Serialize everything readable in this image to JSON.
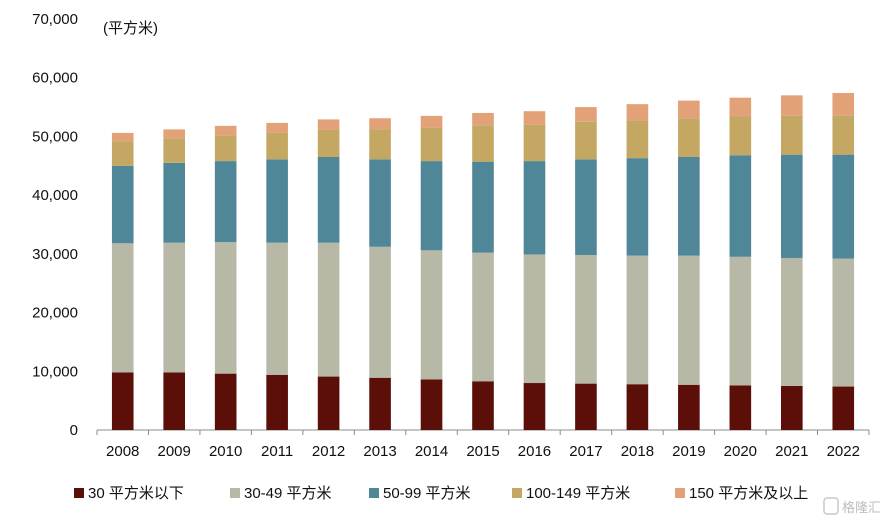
{
  "chart_data": {
    "type": "bar",
    "stacked": true,
    "unit_label": "(平方米)",
    "categories": [
      "2008",
      "2009",
      "2010",
      "2011",
      "2012",
      "2013",
      "2014",
      "2015",
      "2016",
      "2017",
      "2018",
      "2019",
      "2020",
      "2021",
      "2022"
    ],
    "ylim": [
      0,
      70000
    ],
    "yticks": [
      0,
      10000,
      20000,
      30000,
      40000,
      50000,
      60000,
      70000
    ],
    "ytick_labels": [
      "0",
      "10,000",
      "20,000",
      "30,000",
      "40,000",
      "50,000",
      "60,000",
      "70,000"
    ],
    "grid": false,
    "legend_position": "bottom",
    "series": [
      {
        "name": "30 平方米以下",
        "color": "#5c0f08",
        "values": [
          9800,
          9800,
          9600,
          9400,
          9100,
          8900,
          8600,
          8300,
          8000,
          7900,
          7800,
          7700,
          7600,
          7500,
          7400
        ]
      },
      {
        "name": "30-49 平方米",
        "color": "#b7b9a6",
        "values": [
          22000,
          22100,
          22400,
          22500,
          22800,
          22300,
          22000,
          21900,
          21900,
          21900,
          21900,
          22000,
          21900,
          21800,
          21800
        ]
      },
      {
        "name": "50-99 平方米",
        "color": "#4f8799",
        "values": [
          13200,
          13600,
          13800,
          14200,
          14600,
          14900,
          15200,
          15500,
          15900,
          16300,
          16600,
          16800,
          17300,
          17600,
          17700
        ]
      },
      {
        "name": "100-149 平方米",
        "color": "#c4a762",
        "values": [
          4200,
          4200,
          4400,
          4500,
          4600,
          5100,
          5700,
          6200,
          6200,
          6400,
          6400,
          6600,
          6600,
          6600,
          6700
        ]
      },
      {
        "name": "150 平方米及以上",
        "color": "#e3a178",
        "values": [
          1400,
          1500,
          1600,
          1700,
          1800,
          1900,
          2000,
          2100,
          2300,
          2500,
          2800,
          3000,
          3200,
          3500,
          3800
        ]
      }
    ]
  },
  "watermark": {
    "text": "格隆汇",
    "icon": "logo-g-icon"
  }
}
